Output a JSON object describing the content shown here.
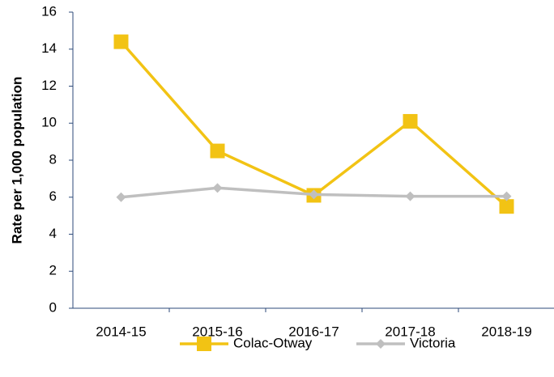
{
  "chart_data": {
    "type": "line",
    "y_label": "Rate per 1,000 population",
    "categories": [
      "2014-15",
      "2015-16",
      "2016-17",
      "2017-18",
      "2018-19"
    ],
    "series": [
      {
        "name": "Colac-Otway",
        "color": "#f2c314",
        "marker": "square",
        "values": [
          14.4,
          8.5,
          6.1,
          10.1,
          5.5
        ]
      },
      {
        "name": "Victoria",
        "color": "#bfbfbf",
        "marker": "diamond",
        "values": [
          6.0,
          6.5,
          6.15,
          6.05,
          6.05
        ]
      }
    ],
    "ylim": [
      0,
      16
    ],
    "yticks": [
      0,
      2,
      4,
      6,
      8,
      10,
      12,
      14,
      16
    ],
    "grid": false,
    "legend": "bottom"
  }
}
